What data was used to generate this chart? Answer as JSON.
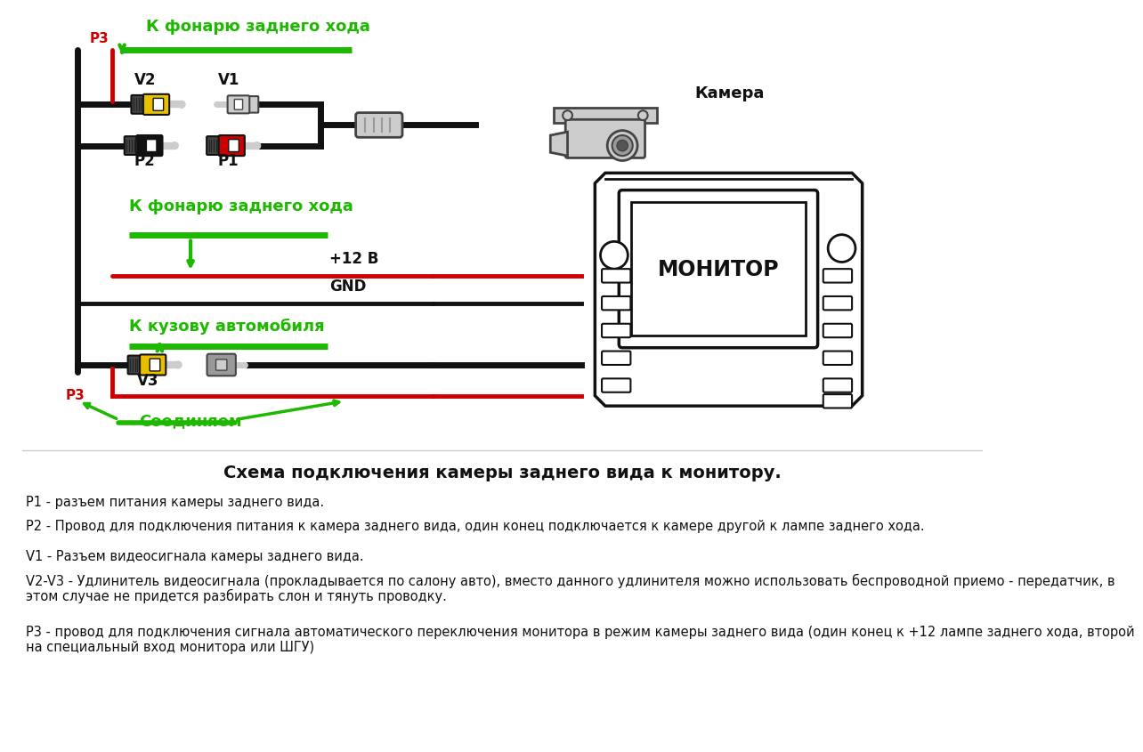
{
  "bg_color": "#ffffff",
  "title": "Схема подключения камеры заднего вида к монитору.",
  "desc_lines": [
    "Р1 - разъем питания камеры заднего вида.",
    "Р2 - Провод для подключения питания к камера заднего вида, один конец подключается к камере другой к лампе заднего хода.",
    "V1 - Разъем видеосигнала камеры заднего вида.",
    "V2-V3 - Удлинитель видеосигнала (прокладывается по салону авто), вместо данного удлинителя можно использовать беспроводной приемо - передатчик, в этом случае не придется разбирать слон и тянуть проводку.",
    "Р3 - провод для подключения сигнала автоматического переключения монитора в режим камеры заднего вида (один конец к +12 лампе заднего хода, второй на специальный вход монитора или ШГУ)"
  ],
  "green": "#1db800",
  "red": "#cc0000",
  "yellow": "#e8c000",
  "black": "#111111",
  "gray": "#888888",
  "light_gray": "#cccccc",
  "dark_gray": "#444444",
  "mid_gray": "#999999"
}
